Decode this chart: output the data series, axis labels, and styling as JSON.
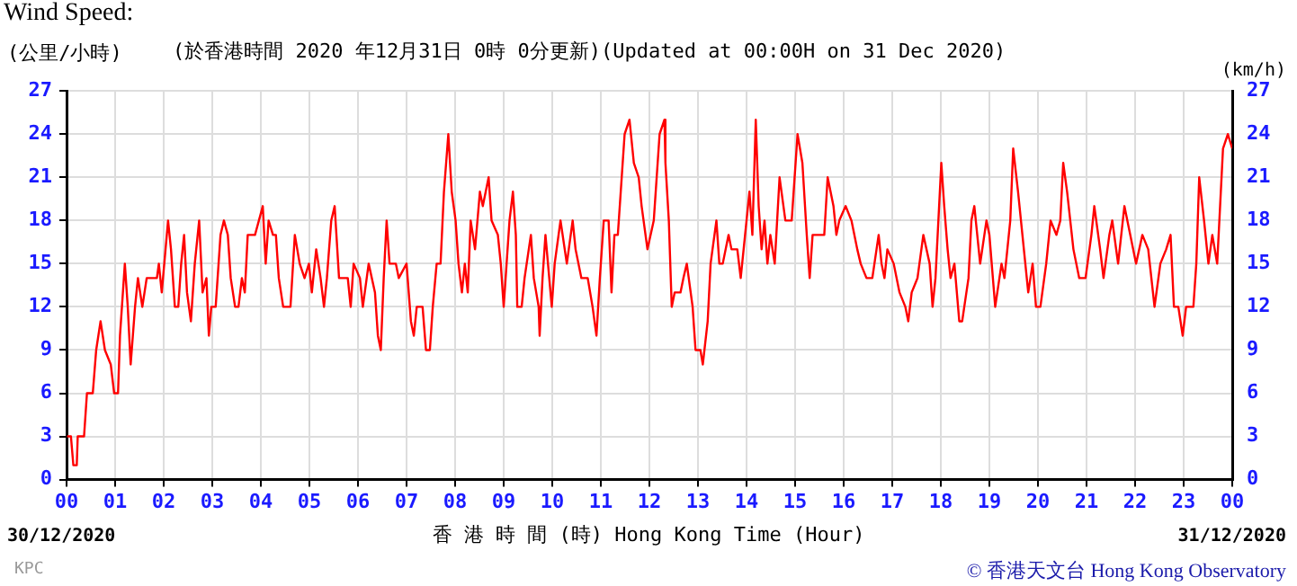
{
  "chart_data": {
    "type": "line",
    "title": "Wind Speed:",
    "subtitle": "(於香港時間 2020 年12月31日 0時 0分更新)(Updated at 00:00H on 31 Dec 2020)",
    "ylabel": "(公里/小時)",
    "y2label": "(km/h)",
    "xlabel": "香 港 時 間 (時) Hong Kong Time (Hour)",
    "annotations": [
      "30/12/2020",
      "31/12/2020",
      "© 香港天文台 Hong Kong Observatory",
      "KPC"
    ],
    "xlim": [
      0,
      24
    ],
    "xticks": [
      {
        "value": 0,
        "label": "00"
      },
      {
        "value": 1,
        "label": "01"
      },
      {
        "value": 2,
        "label": "02"
      },
      {
        "value": 3,
        "label": "03"
      },
      {
        "value": 4,
        "label": "04"
      },
      {
        "value": 5,
        "label": "05"
      },
      {
        "value": 6,
        "label": "06"
      },
      {
        "value": 7,
        "label": "07"
      },
      {
        "value": 8,
        "label": "08"
      },
      {
        "value": 9,
        "label": "09"
      },
      {
        "value": 10,
        "label": "10"
      },
      {
        "value": 11,
        "label": "11"
      },
      {
        "value": 12,
        "label": "12"
      },
      {
        "value": 13,
        "label": "13"
      },
      {
        "value": 14,
        "label": "14"
      },
      {
        "value": 15,
        "label": "15"
      },
      {
        "value": 16,
        "label": "16"
      },
      {
        "value": 17,
        "label": "17"
      },
      {
        "value": 18,
        "label": "18"
      },
      {
        "value": 19,
        "label": "19"
      },
      {
        "value": 20,
        "label": "20"
      },
      {
        "value": 21,
        "label": "21"
      },
      {
        "value": 22,
        "label": "22"
      },
      {
        "value": 23,
        "label": "23"
      },
      {
        "value": 24,
        "label": "00"
      }
    ],
    "ylim": [
      0,
      27
    ],
    "yticks": [
      0,
      3,
      6,
      9,
      12,
      15,
      18,
      21,
      24,
      27
    ],
    "y2lim": [
      0,
      27
    ],
    "y2ticks": [
      0,
      3,
      6,
      9,
      12,
      15,
      18,
      21,
      24,
      27
    ],
    "grid": true,
    "marker": "none",
    "line_style": "solid",
    "series": [
      {
        "color": "#ff0000",
        "x": [
          0.01,
          0.09,
          0.14,
          0.21,
          0.23,
          0.36,
          0.42,
          0.54,
          0.61,
          0.7,
          0.79,
          0.91,
          0.98,
          1.06,
          1.1,
          1.2,
          1.26,
          1.32,
          1.41,
          1.47,
          1.56,
          1.65,
          1.86,
          1.9,
          1.96,
          2.09,
          2.15,
          2.23,
          2.3,
          2.36,
          2.42,
          2.48,
          2.56,
          2.64,
          2.73,
          2.8,
          2.88,
          2.93,
          2.98,
          3.07,
          3.17,
          3.24,
          3.32,
          3.38,
          3.47,
          3.54,
          3.61,
          3.67,
          3.73,
          3.88,
          3.96,
          4.04,
          4.1,
          4.16,
          4.25,
          4.31,
          4.37,
          4.46,
          4.61,
          4.7,
          4.8,
          4.9,
          4.99,
          5.05,
          5.14,
          5.23,
          5.3,
          5.36,
          5.45,
          5.52,
          5.61,
          5.67,
          5.79,
          5.85,
          5.91,
          6.04,
          6.1,
          6.22,
          6.35,
          6.41,
          6.47,
          6.53,
          6.59,
          6.65,
          6.78,
          6.84,
          7.0,
          7.09,
          7.15,
          7.21,
          7.33,
          7.4,
          7.48,
          7.54,
          7.62,
          7.7,
          7.77,
          7.86,
          7.93,
          8.01,
          8.07,
          8.14,
          8.2,
          8.26,
          8.32,
          8.41,
          8.51,
          8.57,
          8.63,
          8.69,
          8.75,
          8.88,
          8.94,
          9.0,
          9.06,
          9.12,
          9.19,
          9.25,
          9.28,
          9.37,
          9.43,
          9.56,
          9.62,
          9.72,
          9.74,
          9.8,
          9.86,
          9.99,
          10.05,
          10.17,
          10.3,
          10.42,
          10.48,
          10.6,
          10.73,
          10.83,
          10.91,
          10.98,
          11.06,
          11.16,
          11.22,
          11.28,
          11.35,
          11.41,
          11.49,
          11.59,
          11.68,
          11.78,
          11.84,
          11.96,
          12.09,
          12.21,
          12.31,
          12.33,
          12.4,
          12.46,
          12.52,
          12.64,
          12.7,
          12.77,
          12.89,
          12.95,
          13.05,
          13.1,
          13.2,
          13.26,
          13.38,
          13.44,
          13.51,
          13.63,
          13.69,
          13.81,
          13.88,
          14.0,
          14.06,
          14.12,
          14.19,
          14.25,
          14.31,
          14.37,
          14.43,
          14.49,
          14.58,
          14.68,
          14.8,
          14.93,
          15.05,
          15.15,
          15.24,
          15.3,
          15.36,
          15.48,
          15.6,
          15.67,
          15.79,
          15.85,
          15.91,
          16.04,
          16.16,
          16.28,
          16.35,
          16.47,
          16.59,
          16.72,
          16.78,
          16.84,
          16.9,
          17.03,
          17.15,
          17.27,
          17.33,
          17.4,
          17.52,
          17.64,
          17.77,
          17.83,
          17.89,
          18.01,
          18.07,
          18.14,
          18.2,
          18.28,
          18.38,
          18.44,
          18.57,
          18.63,
          18.69,
          18.81,
          18.94,
          19.0,
          19.12,
          19.25,
          19.31,
          19.43,
          19.49,
          19.59,
          19.68,
          19.8,
          19.89,
          19.96,
          20.05,
          20.17,
          20.26,
          20.38,
          20.46,
          20.52,
          20.6,
          20.73,
          20.85,
          20.98,
          21.1,
          21.16,
          21.28,
          21.35,
          21.47,
          21.53,
          21.65,
          21.78,
          21.9,
          22.02,
          22.15,
          22.27,
          22.4,
          22.52,
          22.64,
          22.73,
          22.8,
          22.89,
          22.98,
          23.05,
          23.2,
          23.26,
          23.32,
          23.42,
          23.51,
          23.59,
          23.69,
          23.75,
          23.81,
          23.91,
          24.0
        ],
        "values": [
          3,
          3,
          1,
          1,
          3,
          3,
          6,
          6,
          9,
          11,
          9,
          8,
          6,
          6,
          10,
          15,
          12,
          8,
          12,
          14,
          12,
          14,
          14,
          15,
          13,
          18,
          16,
          12,
          12,
          15,
          17,
          13,
          11,
          15,
          18,
          13,
          14,
          10,
          12,
          12,
          17,
          18,
          17,
          14,
          12,
          12,
          14,
          13,
          17,
          17,
          18,
          19,
          15,
          18,
          17,
          17,
          14,
          12,
          12,
          17,
          15,
          14,
          15,
          13,
          16,
          14,
          12,
          14,
          18,
          19,
          14,
          14,
          14,
          12,
          15,
          14,
          12,
          15,
          13,
          10,
          9,
          14,
          18,
          15,
          15,
          14,
          15,
          11,
          10,
          12,
          12,
          9,
          9,
          12,
          15,
          15,
          20,
          24,
          20,
          18,
          15,
          13,
          15,
          13,
          18,
          16,
          20,
          19,
          20,
          21,
          18,
          17,
          15,
          12,
          15,
          18,
          20,
          17,
          12,
          12,
          14,
          17,
          14,
          12,
          10,
          14,
          17,
          12,
          15,
          18,
          15,
          18,
          16,
          14,
          14,
          12,
          10,
          14,
          18,
          18,
          13,
          17,
          17,
          20,
          24,
          25,
          22,
          21,
          19,
          16,
          18,
          24,
          25,
          22,
          18,
          12,
          13,
          13,
          14,
          15,
          12,
          9,
          9,
          8,
          11,
          15,
          18,
          15,
          15,
          17,
          16,
          16,
          14,
          18,
          20,
          17,
          25,
          19,
          16,
          18,
          15,
          17,
          15,
          21,
          18,
          18,
          24,
          22,
          17,
          14,
          17,
          17,
          17,
          21,
          19,
          17,
          18,
          19,
          18,
          16,
          15,
          14,
          14,
          17,
          15,
          14,
          16,
          15,
          13,
          12,
          11,
          13,
          14,
          17,
          15,
          12,
          14,
          22,
          19,
          16,
          14,
          15,
          11,
          11,
          14,
          18,
          19,
          15,
          18,
          17,
          12,
          15,
          14,
          18,
          23,
          20,
          17,
          13,
          15,
          12,
          12,
          15,
          18,
          17,
          18,
          22,
          20,
          16,
          14,
          14,
          17,
          19,
          16,
          14,
          17,
          18,
          15,
          19,
          17,
          15,
          17,
          16,
          12,
          15,
          16,
          17,
          12,
          12,
          10,
          12,
          12,
          15,
          21,
          18,
          15,
          17,
          15,
          19,
          23,
          24,
          23
        ]
      }
    ]
  }
}
